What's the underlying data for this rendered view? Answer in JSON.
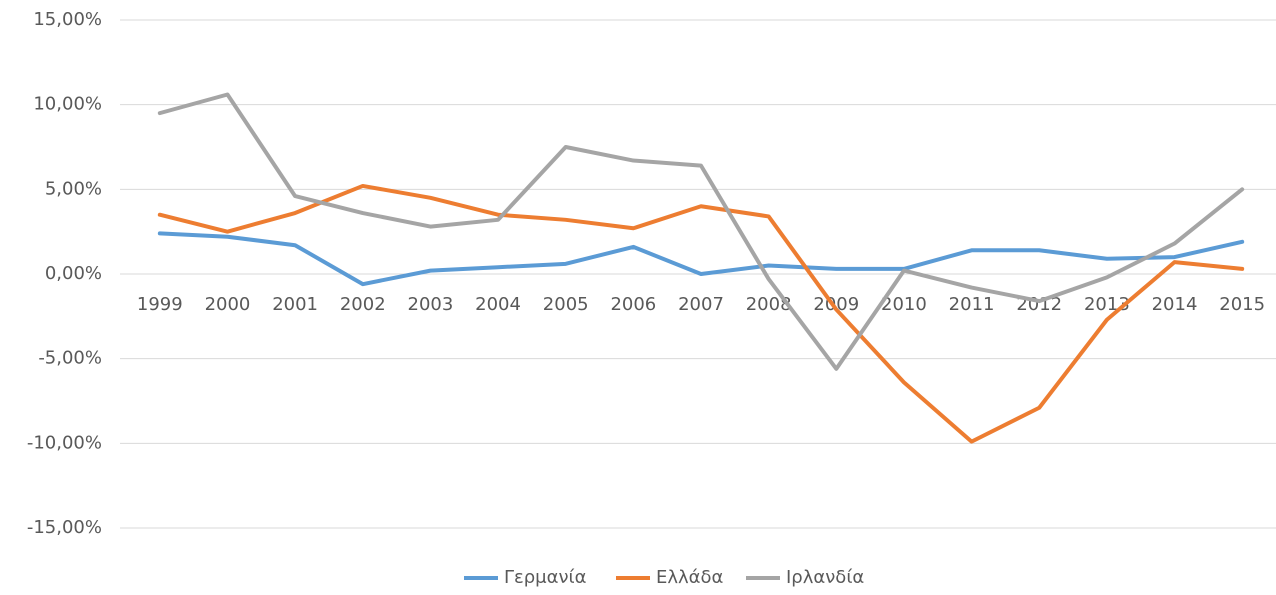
{
  "chart_data": {
    "type": "line",
    "categories": [
      "1999",
      "2000",
      "2001",
      "2002",
      "2003",
      "2004",
      "2005",
      "2006",
      "2007",
      "2008",
      "2009",
      "2010",
      "2011",
      "2012",
      "2013",
      "2014",
      "2015"
    ],
    "series": [
      {
        "name": "Γερμανία",
        "color": "#5b9bd5",
        "values": [
          2.4,
          2.2,
          1.7,
          -0.6,
          0.2,
          0.4,
          0.6,
          1.6,
          0.0,
          0.5,
          0.3,
          0.3,
          1.4,
          1.4,
          0.9,
          1.0,
          1.9
        ]
      },
      {
        "name": "Ελλάδα",
        "color": "#ed7d31",
        "values": [
          3.5,
          2.5,
          3.6,
          5.2,
          4.5,
          3.5,
          3.2,
          2.7,
          4.0,
          3.4,
          -2.1,
          -6.4,
          -9.9,
          -7.9,
          -2.7,
          0.7,
          0.3
        ]
      },
      {
        "name": "Ιρλανδία",
        "color": "#a5a5a5",
        "values": [
          9.5,
          10.6,
          4.6,
          3.6,
          2.8,
          3.2,
          7.5,
          6.7,
          6.4,
          -0.3,
          -5.6,
          0.2,
          -0.8,
          -1.6,
          -0.2,
          1.8,
          5.0
        ]
      }
    ],
    "ylim": [
      -15,
      15
    ],
    "yticks": [
      {
        "value": -15,
        "label": "-15,00%"
      },
      {
        "value": -10,
        "label": "-10,00%"
      },
      {
        "value": -5,
        "label": "-5,00%"
      },
      {
        "value": 0,
        "label": "0,00%"
      },
      {
        "value": 5,
        "label": "5,00%"
      },
      {
        "value": 10,
        "label": "10,00%"
      },
      {
        "value": 15,
        "label": "15,00%"
      }
    ],
    "grid": true,
    "legend": "bottom"
  }
}
